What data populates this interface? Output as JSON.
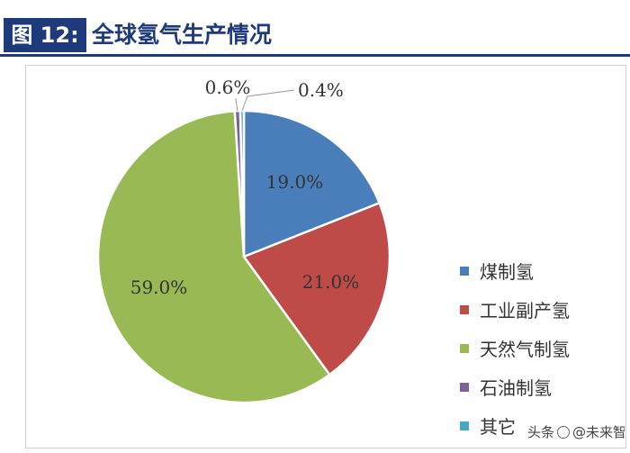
{
  "header": {
    "figure_label": "图 12:",
    "title": "全球氢气生产情况"
  },
  "chart_data": {
    "type": "pie",
    "slices": [
      {
        "name": "煤制氢",
        "value": 19.0,
        "label": "19.0%",
        "color": "#4a7ebb"
      },
      {
        "name": "工业副产氢",
        "value": 21.0,
        "label": "21.0%",
        "color": "#be4b48"
      },
      {
        "name": "天然气制氢",
        "value": 59.0,
        "label": "59.0%",
        "color": "#98b954"
      },
      {
        "name": "石油制氢",
        "value": 0.6,
        "label": "0.6%",
        "color": "#7d60a0"
      },
      {
        "name": "其它",
        "value": 0.4,
        "label": "0.4%",
        "color": "#46aac5"
      }
    ],
    "legend_position": "right"
  },
  "watermark": {
    "prefix": "头条",
    "brand": "@未来智库"
  }
}
